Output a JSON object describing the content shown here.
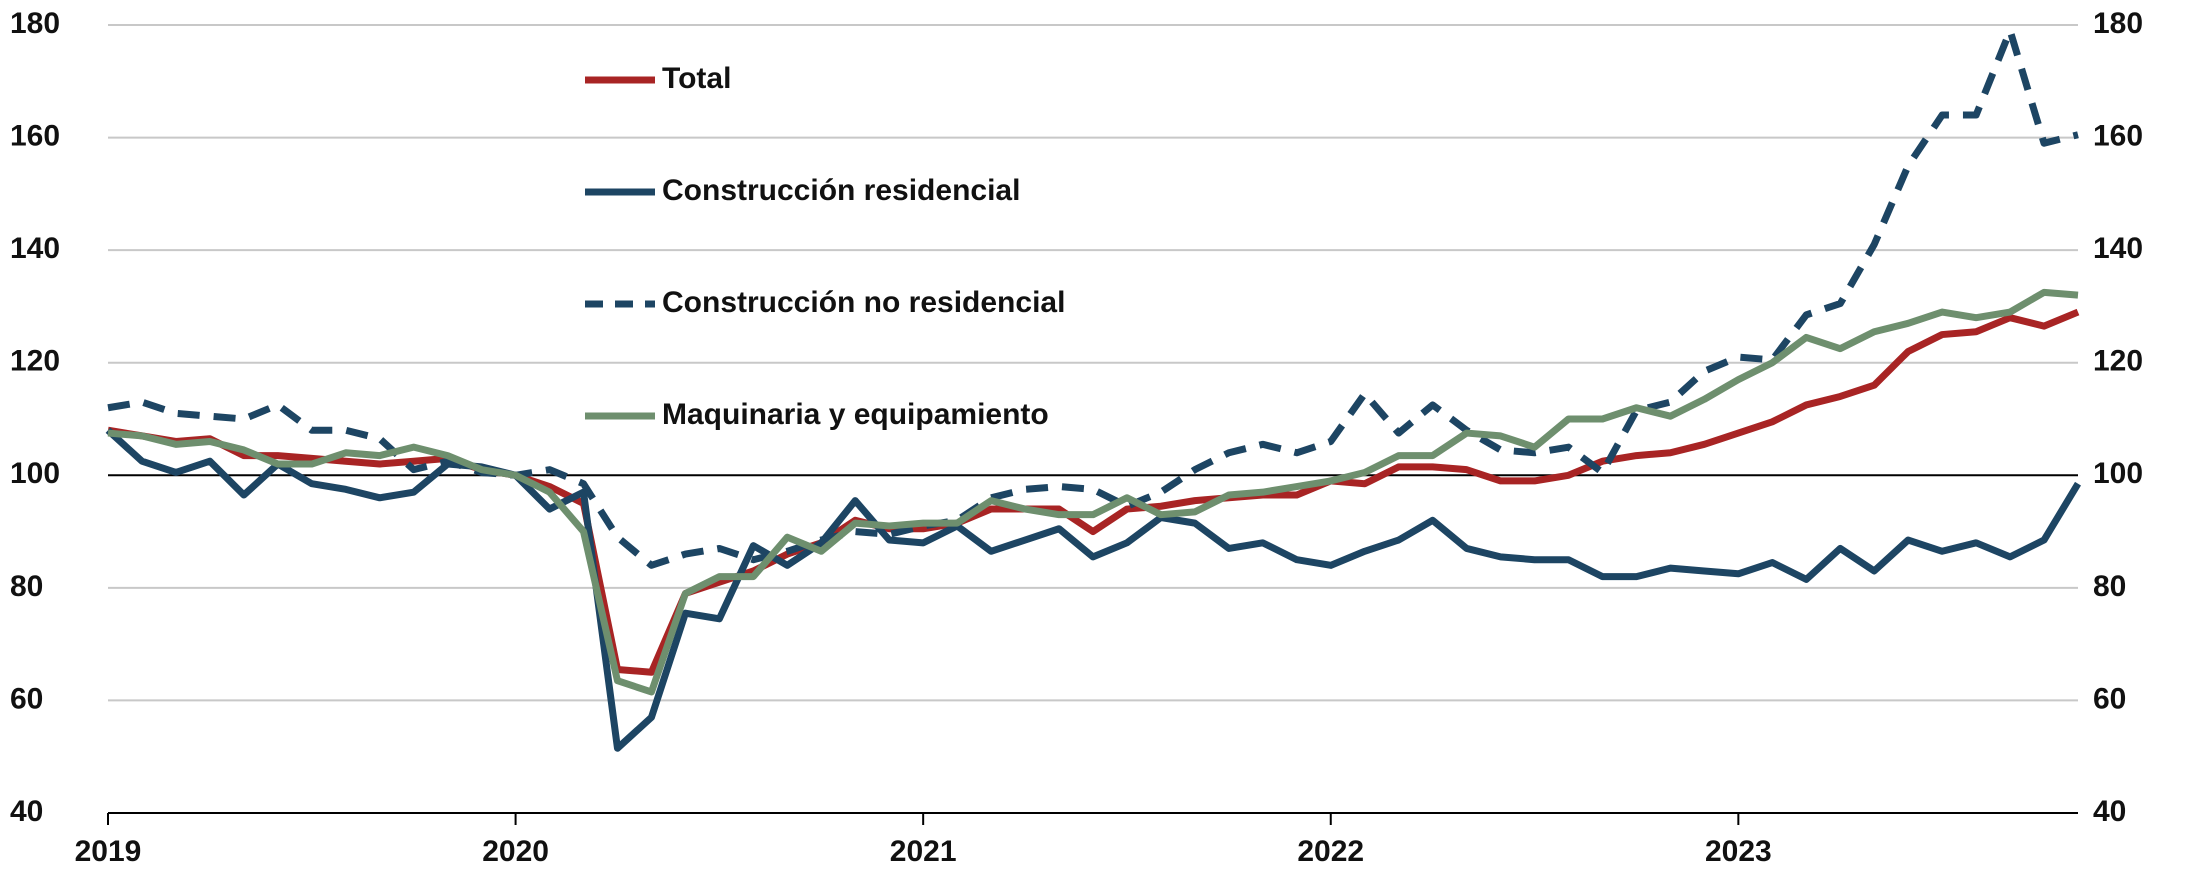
{
  "chart_data": {
    "type": "line",
    "categories": [
      "2019",
      null,
      null,
      null,
      null,
      null,
      null,
      null,
      null,
      null,
      null,
      null,
      "2020",
      null,
      null,
      null,
      null,
      null,
      null,
      null,
      null,
      null,
      null,
      null,
      "2021",
      null,
      null,
      null,
      null,
      null,
      null,
      null,
      null,
      null,
      null,
      null,
      "2022",
      null,
      null,
      null,
      null,
      null,
      null,
      null,
      null,
      null,
      null,
      null,
      "2023",
      null,
      null,
      null,
      null,
      null,
      null,
      null,
      null,
      null,
      null
    ],
    "series": [
      {
        "name": "Total",
        "color": "#a82424",
        "dashed": false,
        "values": [
          108,
          107,
          106,
          106.5,
          103.5,
          103.5,
          103,
          102.5,
          102,
          102.5,
          103,
          101,
          100,
          98,
          95,
          65.5,
          65,
          79,
          81,
          83,
          86,
          88,
          92,
          90.5,
          90.5,
          91.5,
          94,
          94,
          94,
          90,
          94,
          94.5,
          95.5,
          96,
          96.5,
          96.5,
          99,
          98.5,
          101.5,
          101.5,
          101,
          99,
          99,
          100,
          102.5,
          103.5,
          104,
          105.5,
          107.5,
          109.5,
          112.5,
          114,
          116,
          122,
          125,
          125.5,
          128,
          126.5,
          129
        ]
      },
      {
        "name": "Construcción residencial",
        "color": "#1d4563",
        "dashed": false,
        "values": [
          108,
          102.5,
          100.5,
          102.5,
          96.5,
          102,
          98.5,
          97.5,
          96,
          97,
          102,
          101.5,
          100,
          94,
          97,
          51.5,
          57,
          75.5,
          74.5,
          87.5,
          84,
          88,
          95.5,
          88.5,
          88,
          91,
          86.5,
          88.5,
          90.5,
          85.5,
          88,
          92.5,
          91.5,
          87,
          88,
          85,
          84,
          86.5,
          88.5,
          92,
          87,
          85.5,
          85,
          85,
          82,
          82,
          83.5,
          83,
          82.5,
          84.5,
          81.5,
          87,
          83,
          88.5,
          86.5,
          88,
          85.5,
          88.5,
          98.5
        ]
      },
      {
        "name": "Construcción no residencial",
        "color": "#1d4563",
        "dashed": true,
        "values": [
          112,
          113,
          111,
          110.5,
          110,
          112.5,
          108,
          108,
          106.5,
          101,
          102.5,
          100.5,
          100,
          101,
          98.5,
          89,
          84,
          86,
          87,
          85,
          86.5,
          88.5,
          90,
          89.5,
          91,
          92,
          96,
          97.5,
          98,
          97.5,
          94.5,
          97,
          101,
          104,
          105.5,
          104,
          106,
          114.5,
          107.5,
          112.5,
          108,
          104.5,
          104,
          105,
          100.5,
          111.5,
          113,
          118.5,
          121,
          120.5,
          128.5,
          130.5,
          141,
          155,
          164,
          164,
          179,
          159,
          160.5
        ]
      },
      {
        "name": "Maquinaria y equipamiento",
        "color": "#6e8f6e",
        "dashed": false,
        "values": [
          107.5,
          107,
          105.5,
          106,
          104.5,
          102,
          102,
          104,
          103.5,
          105,
          103.5,
          101,
          100,
          97,
          90,
          63.5,
          61.5,
          79,
          82,
          82,
          89,
          86.5,
          91.5,
          91,
          91.5,
          91.5,
          95.5,
          94,
          93,
          93,
          96,
          93,
          93.5,
          96.5,
          97,
          98,
          99,
          100.5,
          103.5,
          103.5,
          107.5,
          107,
          105,
          110,
          110,
          112,
          110.5,
          113.5,
          117,
          120,
          124.5,
          122.5,
          125.5,
          127,
          129,
          128,
          129,
          132.5,
          132
        ]
      }
    ],
    "ylim": [
      40,
      180
    ],
    "yticks": [
      40,
      60,
      80,
      100,
      120,
      140,
      160,
      180
    ],
    "y2lim": [
      40,
      180
    ],
    "y2ticks": [
      40,
      60,
      80,
      100,
      120,
      140,
      160,
      180
    ],
    "grid": true,
    "hline": 100,
    "legend": "upper left"
  }
}
